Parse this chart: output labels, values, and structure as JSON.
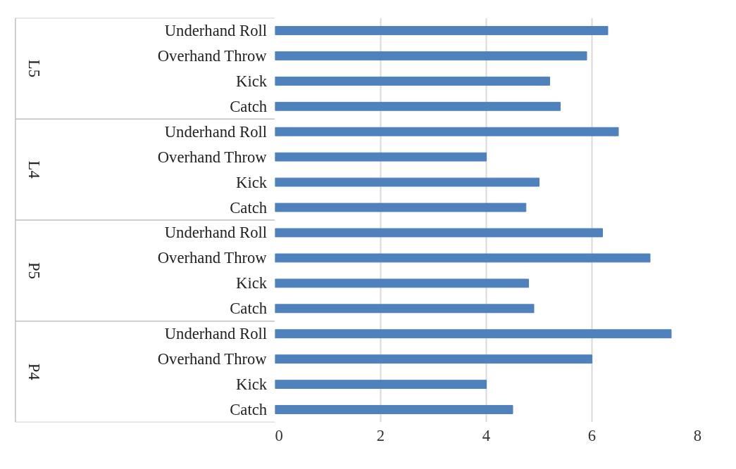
{
  "chart_data": {
    "type": "bar",
    "orientation": "horizontal",
    "categories": [
      "Underhand Roll",
      "Overhand Throw",
      "Kick",
      "Catch",
      "Underhand Roll",
      "Overhand Throw",
      "Kick",
      "Catch",
      "Underhand Roll",
      "Overhand Throw",
      "Kick",
      "Catch",
      "Underhand Roll",
      "Overhand Throw",
      "Kick",
      "Catch"
    ],
    "values": [
      6.3,
      5.9,
      5.2,
      5.4,
      6.5,
      4.0,
      5.0,
      4.75,
      6.2,
      7.1,
      4.8,
      4.9,
      7.5,
      6.0,
      4.0,
      4.5
    ],
    "color": "#4f81bd",
    "annotations": [
      "L5",
      "L4",
      "P5",
      "P4"
    ],
    "xlim": [
      0,
      8
    ],
    "xticks": [
      0,
      2,
      4,
      6,
      8
    ],
    "grid": "x"
  }
}
